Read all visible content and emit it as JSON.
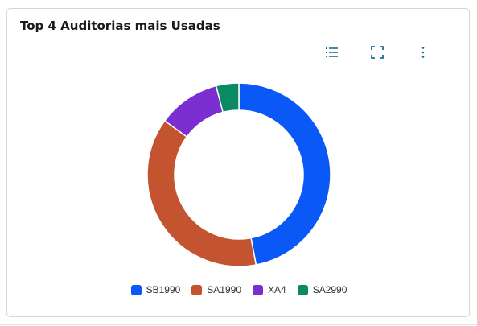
{
  "card": {
    "title": "Top 4 Auditorias mais Usadas"
  },
  "toolbar": {
    "icons": [
      "list-icon",
      "fullscreen-icon",
      "more-vertical-icon"
    ],
    "icon_color": "#1f6f8b"
  },
  "chart_data": {
    "type": "pie",
    "donut": true,
    "categories": [
      "SB1990",
      "SA1990",
      "XA4",
      "SA2990"
    ],
    "values": [
      47,
      38,
      11,
      4
    ],
    "colors": [
      "#0a58f5",
      "#c4532f",
      "#7b2fd0",
      "#0a8a63"
    ],
    "legend_position": "bottom"
  }
}
